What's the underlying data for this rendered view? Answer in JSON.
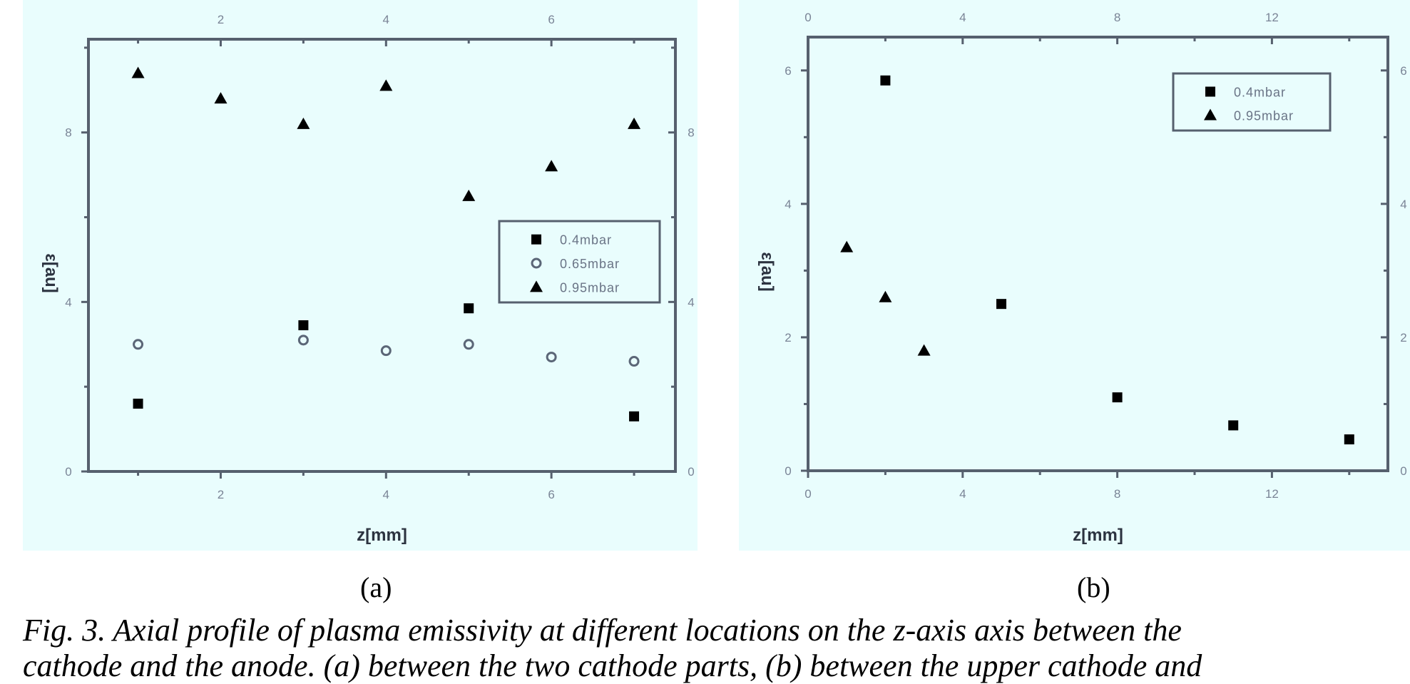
{
  "figure": {
    "sub_labels": [
      "(a)",
      "(b)"
    ],
    "caption_line1": "Fig. 3. Axial profile of plasma emissivity at different locations on the z-axis axis between the",
    "caption_line2": "cathode and the anode. (a) between the two cathode parts, (b) between the upper cathode and"
  },
  "colors": {
    "panel_bg": "#e9fdfd",
    "axis": "#56606e",
    "marker": "#000000"
  },
  "chart_data": [
    {
      "type": "scatter",
      "title": "(a)",
      "xlabel": "z[mm]",
      "ylabel": "ε[au]",
      "xlim": [
        0.4,
        7.5
      ],
      "ylim": [
        0,
        10.2
      ],
      "xticks": [
        2,
        4,
        6
      ],
      "yticks": [
        0,
        4,
        8
      ],
      "grid": false,
      "legend_position": "center-right",
      "series": [
        {
          "name": "0.4mbar",
          "marker": "square-filled",
          "x": [
            1,
            3,
            5,
            7
          ],
          "y": [
            1.6,
            3.45,
            3.85,
            1.3
          ]
        },
        {
          "name": "0.65mbar",
          "marker": "circle-open",
          "x": [
            1,
            3,
            4,
            5,
            6,
            7
          ],
          "y": [
            3.0,
            3.1,
            2.85,
            3.0,
            2.7,
            2.6
          ]
        },
        {
          "name": "0.95mbar",
          "marker": "triangle-filled",
          "x": [
            1,
            2,
            3,
            4,
            5,
            6,
            7
          ],
          "y": [
            9.4,
            8.8,
            8.2,
            9.1,
            6.5,
            7.2,
            8.2
          ]
        }
      ]
    },
    {
      "type": "scatter",
      "title": "(b)",
      "xlabel": "z[mm]",
      "ylabel": "ε[au]",
      "xlim": [
        0,
        15
      ],
      "ylim": [
        0,
        6.5
      ],
      "xticks": [
        0,
        4,
        8,
        12
      ],
      "yticks": [
        0,
        2,
        4,
        6
      ],
      "grid": false,
      "legend_position": "upper-right",
      "series": [
        {
          "name": "0.4mbar",
          "marker": "square-filled",
          "x": [
            2,
            5,
            8,
            11,
            14
          ],
          "y": [
            5.85,
            2.5,
            1.1,
            0.68,
            0.47
          ]
        },
        {
          "name": "0.95mbar",
          "marker": "triangle-filled",
          "x": [
            1,
            2,
            3
          ],
          "y": [
            3.35,
            2.6,
            1.8
          ]
        }
      ]
    }
  ]
}
